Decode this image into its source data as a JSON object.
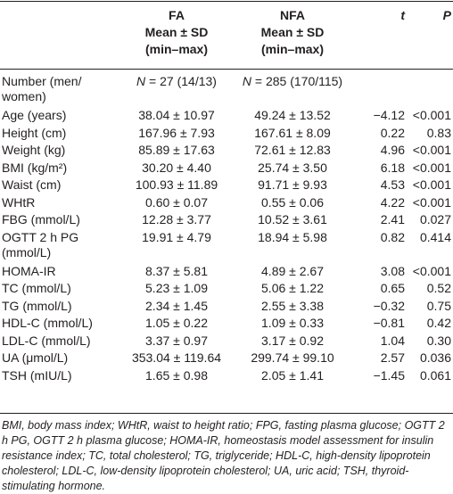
{
  "header": {
    "fa": [
      "FA",
      "Mean ± SD",
      "(min–max)"
    ],
    "nfa": [
      "NFA",
      "Mean ± SD",
      "(min–max)"
    ],
    "t": "t",
    "p": "P"
  },
  "rows": [
    {
      "label": "Number (men/ women)",
      "fa_prefix": "N",
      "fa": " = 27 (14/13)",
      "nfa_prefix": "N",
      "nfa": " = 285 (170/115)",
      "t": "",
      "p": ""
    },
    {
      "label": "Age (years)",
      "fa": "38.04 ± 10.97",
      "nfa": "49.24 ± 13.52",
      "t": "−4.12",
      "p": "<0.001"
    },
    {
      "label": "Height (cm)",
      "fa": "167.96 ± 7.93",
      "nfa": "167.61 ± 8.09",
      "t": "0.22",
      "p": "0.83"
    },
    {
      "label": "Weight (kg)",
      "fa": "85.89 ± 17.63",
      "nfa": "72.61 ± 12.83",
      "t": "4.96",
      "p": "<0.001"
    },
    {
      "label": "BMI (kg/m²)",
      "fa": "30.20 ± 4.40",
      "nfa": "25.74 ± 3.50",
      "t": "6.18",
      "p": "<0.001"
    },
    {
      "label": "Waist (cm)",
      "fa": "100.93 ± 11.89",
      "nfa": "91.71 ± 9.93",
      "t": "4.53",
      "p": "<0.001"
    },
    {
      "label": "WHtR",
      "fa": "0.60 ± 0.07",
      "nfa": "0.55 ± 0.06",
      "t": "4.22",
      "p": "<0.001"
    },
    {
      "label": "FBG (mmol/L)",
      "fa": "12.28 ± 3.77",
      "nfa": "10.52 ± 3.61",
      "t": "2.41",
      "p": "0.027"
    },
    {
      "label": "OGTT 2 h PG (mmol/L)",
      "fa": "19.91 ± 4.79",
      "nfa": "18.94 ± 5.98",
      "t": "0.82",
      "p": "0.414"
    },
    {
      "label": "HOMA-IR",
      "fa": "8.37 ± 5.81",
      "nfa": "4.89 ± 2.67",
      "t": "3.08",
      "p": "<0.001"
    },
    {
      "label": "TC (mmol/L)",
      "fa": "5.23 ± 1.09",
      "nfa": "5.06 ± 1.22",
      "t": "0.65",
      "p": "0.52"
    },
    {
      "label": "TG (mmol/L)",
      "fa": "2.34 ± 1.45",
      "nfa": "2.55 ± 3.38",
      "t": "−0.32",
      "p": "0.75"
    },
    {
      "label": "HDL-C (mmol/L)",
      "fa": "1.05 ± 0.22",
      "nfa": "1.09 ± 0.33",
      "t": "−0.81",
      "p": "0.42"
    },
    {
      "label": "LDL-C (mmol/L)",
      "fa": "3.37 ± 0.97",
      "nfa": "3.17 ± 0.92",
      "t": "1.04",
      "p": "0.30"
    },
    {
      "label": "UA (μmol/L)",
      "fa": "353.04 ± 119.64",
      "nfa": "299.74 ± 99.10",
      "t": "2.57",
      "p": "0.036"
    },
    {
      "label": "TSH (mIU/L)",
      "fa": "1.65 ± 0.98",
      "nfa": "2.05 ± 1.41",
      "t": "−1.45",
      "p": "0.061"
    }
  ],
  "footnote": "BMI, body mass index; WHtR, waist to height ratio; FPG, fasting plasma glucose; OGTT 2 h PG, OGTT 2 h plasma glucose; HOMA-IR, homeostasis model assessment for insulin resistance index; TC, total cholesterol; TG, triglyceride; HDL-C, high-density lipoprotein cholesterol; LDL-C, low-density lipoprotein cholesterol; UA, uric acid; TSH, thyroid-stimulating hormone."
}
